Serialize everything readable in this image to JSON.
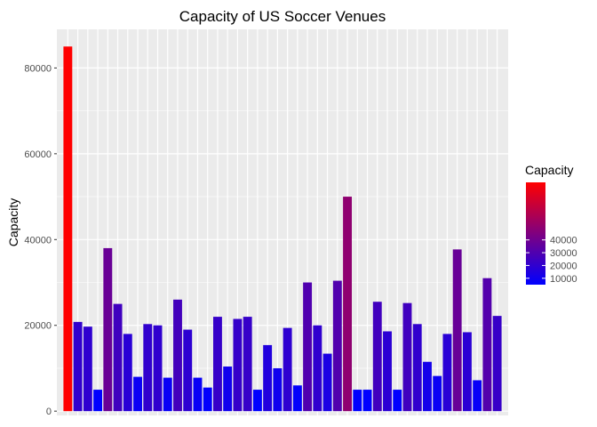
{
  "chart_data": {
    "type": "bar",
    "title": "Capacity of US Soccer Venues",
    "xlabel": "",
    "ylabel": "Capacity",
    "ylim": [
      -1000,
      89000
    ],
    "yticks": [
      0,
      20000,
      40000,
      60000,
      80000
    ],
    "ytick_labels": [
      "0",
      "20000",
      "40000",
      "60000",
      "80000"
    ],
    "grid": true,
    "values": [
      85000,
      20800,
      19700,
      5000,
      38000,
      25000,
      18000,
      8000,
      20300,
      20000,
      7800,
      26000,
      19000,
      7800,
      5500,
      22000,
      10400,
      21500,
      22000,
      5000,
      15400,
      10000,
      19400,
      6000,
      30000,
      20000,
      13400,
      30400,
      50000,
      5000,
      5000,
      25500,
      18600,
      5000,
      25200,
      20300,
      11500,
      8200,
      18000,
      37700,
      18400,
      7200,
      31000,
      22200
    ],
    "color_scale": {
      "low": "#0000ff",
      "high": "#ff0000"
    },
    "legend": {
      "title": "Capacity",
      "position": "right",
      "ticks": [
        10000,
        20000,
        30000,
        40000
      ],
      "tick_labels": [
        "10000",
        "20000",
        "30000",
        "40000"
      ]
    }
  }
}
